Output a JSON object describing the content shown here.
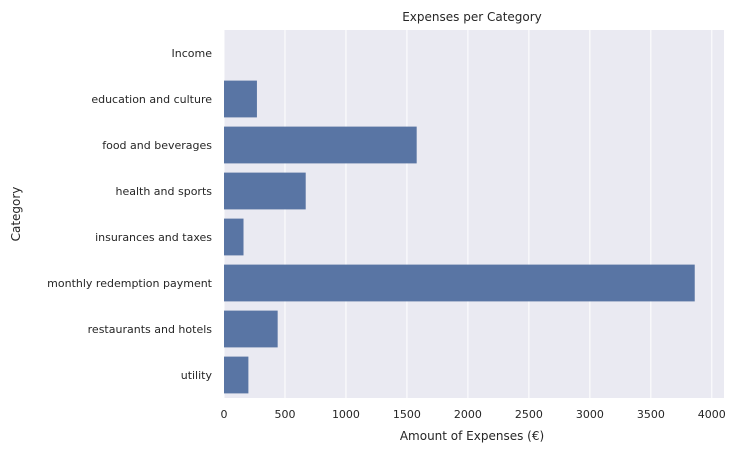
{
  "chart_data": {
    "type": "bar",
    "orientation": "horizontal",
    "title": "Expenses per Category",
    "xlabel": "Amount of Expenses (€)",
    "ylabel": "Category",
    "categories": [
      "Income",
      "education and culture",
      "food and beverages",
      "health and sports",
      "insurances and taxes",
      "monthly redemption payment",
      "restaurants and hotels",
      "utility"
    ],
    "values": [
      0,
      270,
      1580,
      670,
      160,
      3860,
      440,
      200
    ],
    "xlim": [
      0,
      4100
    ],
    "xticks": [
      0,
      500,
      1000,
      1500,
      2000,
      2500,
      3000,
      3500,
      4000
    ],
    "grid": true,
    "legend": "none",
    "colors": {
      "bar": "#5975a4",
      "background": "#eaeaf2",
      "grid": "#ffffff"
    }
  }
}
